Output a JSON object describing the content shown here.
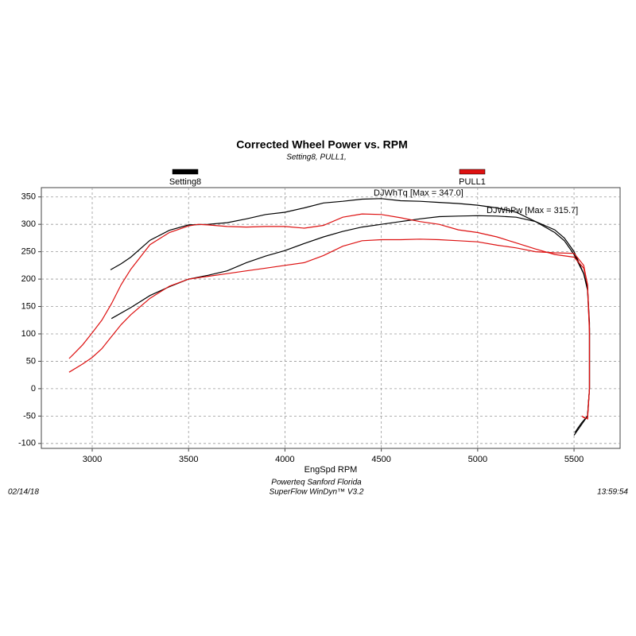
{
  "chart_data": {
    "type": "line",
    "title": "Corrected Wheel Power vs. RPM",
    "subtitle": "Setting8, PULL1,",
    "x_label": "EngSpd RPM",
    "annotations": [
      "DJWhTq [Max = 347.0]",
      "DJWhPw [Max = 315.7]"
    ],
    "footer": {
      "date": "02/14/18",
      "location": "Powerteq Sanford Florida",
      "software": "SuperFlow WinDyn™ V3.2",
      "time": "13:59:54"
    },
    "xlim": [
      2736,
      5739
    ],
    "ylim": [
      -109,
      367
    ],
    "xticks": [
      3000,
      3500,
      4000,
      4500,
      5000,
      5500
    ],
    "yticks": [
      -100,
      -50,
      0,
      50,
      100,
      150,
      200,
      250,
      300,
      350
    ],
    "grid": true,
    "series": [
      {
        "name": "Setting8",
        "color": "#000000",
        "lines": [
          {
            "x": [
              3095,
              3150,
              3200,
              3300,
              3400,
              3500,
              3600,
              3700,
              3800,
              3900,
              4000,
              4100,
              4200,
              4300,
              4400,
              4500,
              4600,
              4700,
              4800,
              4900,
              5000,
              5100,
              5200,
              5300,
              5400,
              5450,
              5500,
              5550,
              5570,
              5580,
              5580,
              5570,
              5540,
              5520,
              5500
            ],
            "values": [
              217,
              228,
              240,
              271,
              289,
              299,
              300,
              303,
              310,
              318,
              322,
              330,
              339,
              342,
              346,
              347,
              343,
              342,
              340,
              338,
              335,
              330,
              322,
              305,
              290,
              275,
              250,
              210,
              180,
              110,
              0,
              -50,
              -65,
              -75,
              -85
            ]
          },
          {
            "x": [
              3100,
              3200,
              3300,
              3400,
              3500,
              3600,
              3700,
              3800,
              3900,
              4000,
              4100,
              4200,
              4300,
              4400,
              4500,
              4600,
              4700,
              4800,
              4900,
              5000,
              5100,
              5200,
              5300,
              5400,
              5450,
              5500,
              5550,
              5570,
              5580,
              5580,
              5570,
              5540,
              5520,
              5505
            ],
            "values": [
              128,
              148,
              170,
              186,
              200,
              207,
              215,
              230,
              242,
              252,
              265,
              277,
              287,
              295,
              300,
              305,
              310,
              314,
              315,
              315.7,
              315,
              313,
              305,
              285,
              270,
              245,
              210,
              185,
              120,
              0,
              -50,
              -62,
              -72,
              -80
            ]
          }
        ]
      },
      {
        "name": "PULL1",
        "color": "#dd1111",
        "lines": [
          {
            "x": [
              2880,
              2900,
              2950,
              3000,
              3050,
              3100,
              3150,
              3200,
              3300,
              3400,
              3500,
              3550,
              3600,
              3700,
              3800,
              3900,
              4000,
              4100,
              4200,
              4300,
              4400,
              4500,
              4600,
              4700,
              4800,
              4900,
              5000,
              5100,
              5200,
              5300,
              5400,
              5500,
              5550,
              5570,
              5580,
              5580,
              5570,
              5550,
              5540
            ],
            "values": [
              55,
              62,
              80,
              102,
              125,
              155,
              190,
              218,
              263,
              285,
              297,
              300,
              299,
              296,
              295,
              296,
              296,
              293,
              298,
              313,
              319,
              318,
              312,
              305,
              300,
              290,
              285,
              277,
              266,
              255,
              245,
              240,
              220,
              190,
              100,
              0,
              -55,
              -52,
              -50
            ]
          },
          {
            "x": [
              2880,
              2950,
              3000,
              3050,
              3100,
              3150,
              3200,
              3300,
              3400,
              3500,
              3600,
              3700,
              3800,
              3900,
              4000,
              4100,
              4200,
              4300,
              4400,
              4500,
              4600,
              4700,
              4800,
              4900,
              5000,
              5100,
              5200,
              5300,
              5400,
              5500,
              5550,
              5570,
              5580,
              5580,
              5570,
              5545
            ],
            "values": [
              30,
              45,
              57,
              73,
              95,
              117,
              135,
              165,
              187,
              200,
              205,
              210,
              215,
              220,
              225,
              230,
              243,
              260,
              270,
              272,
              272,
              273,
              272,
              270,
              268,
              262,
              257,
              250,
              248,
              247,
              225,
              190,
              110,
              0,
              -55,
              -52
            ]
          }
        ]
      }
    ]
  }
}
